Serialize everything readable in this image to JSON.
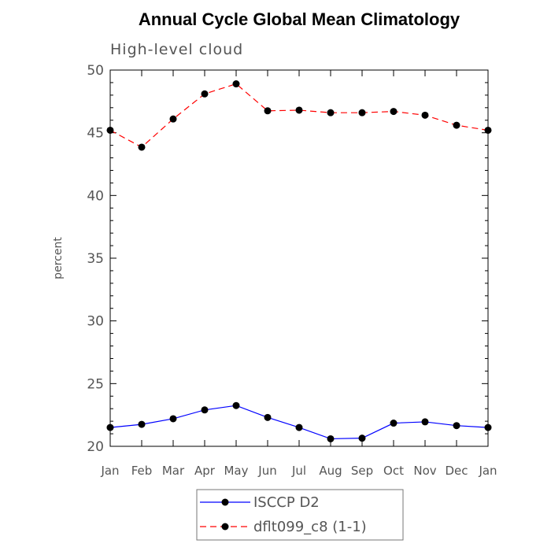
{
  "chart_data": {
    "type": "line",
    "title": "Annual Cycle Global Mean Climatology",
    "subtitle": "High-level cloud",
    "xlabel": "",
    "ylabel": "percent",
    "categories": [
      "Jan",
      "Feb",
      "Mar",
      "Apr",
      "May",
      "Jun",
      "Jul",
      "Aug",
      "Sep",
      "Oct",
      "Nov",
      "Dec",
      "Jan"
    ],
    "ylim": [
      20,
      50
    ],
    "yticks": [
      20,
      25,
      30,
      35,
      40,
      45,
      50
    ],
    "legend_position": "bottom-center",
    "series": [
      {
        "name": "ISCCP D2",
        "color": "#0000ff",
        "line_style": "solid",
        "marker": "filled-circle",
        "values": [
          21.5,
          21.75,
          22.2,
          22.9,
          23.25,
          22.3,
          21.5,
          20.6,
          20.65,
          21.85,
          21.95,
          21.65,
          21.5
        ]
      },
      {
        "name": "dflt099_c8 (1-1)",
        "color": "#ff0000",
        "line_style": "dashed",
        "marker": "filled-circle",
        "values": [
          45.2,
          43.85,
          46.1,
          48.1,
          48.9,
          46.75,
          46.8,
          46.6,
          46.6,
          46.7,
          46.4,
          45.6,
          45.2
        ]
      }
    ]
  }
}
